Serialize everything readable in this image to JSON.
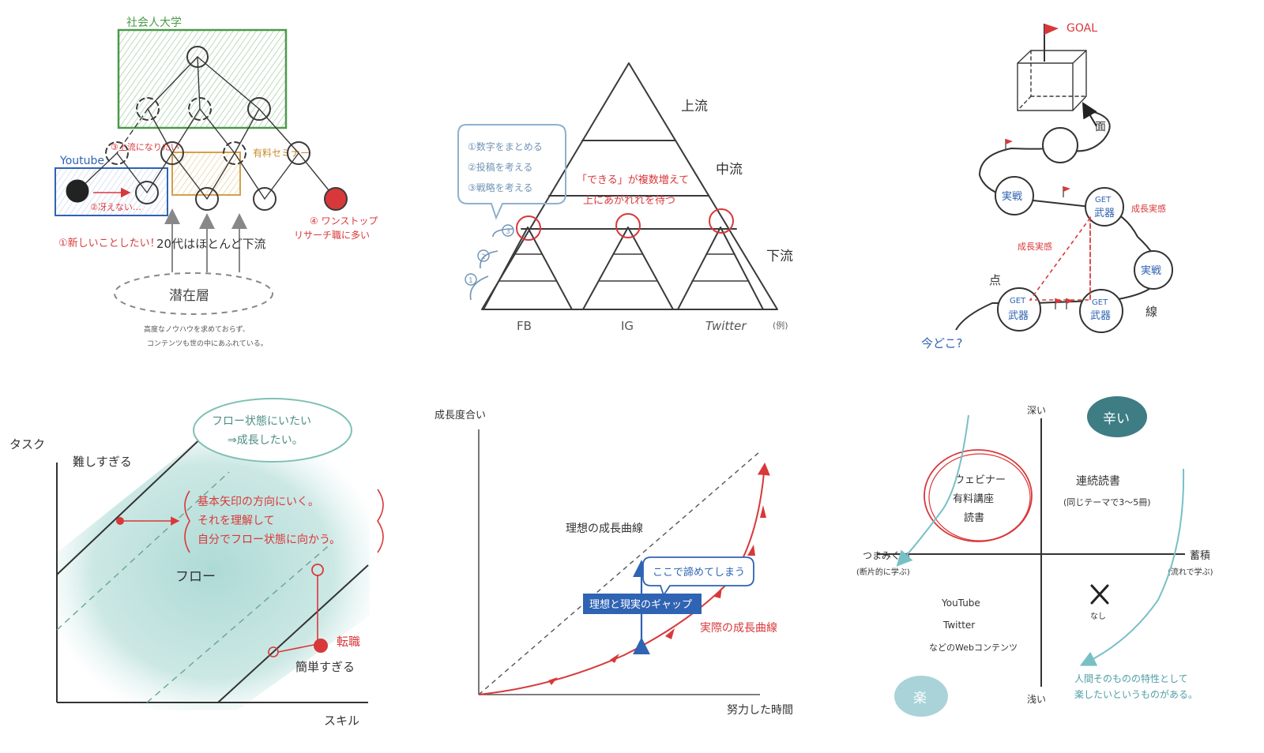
{
  "panel1": {
    "top_box_label": "社会人大学",
    "youtube_label": "Youtube",
    "note_3": "③上流になりたい",
    "note_2": "②冴えない…",
    "note_1": "①新しいことしたい！",
    "paid_seminar": "有料セミナー",
    "note_4": "④ワンストップリサーチ職に多い",
    "note_4_line1": "④ ワンストップ",
    "note_4_line2": "リサーチ職に多い",
    "downstream": "20代はほとんど下流",
    "latent": "潜在層",
    "caption_line1": "高度なノウハウを求めておらず、",
    "caption_line2": "コンテンツも世の中にあふれている。"
  },
  "panel2": {
    "upstream": "上流",
    "midstream": "中流",
    "downstream": "下流",
    "list_1": "①数字をまとめる",
    "list_2": "②投稿を考える",
    "list_3": "③戦略を考える",
    "red_line1": "「できる」が複数増えて",
    "red_line2": "上にあがれれを待つ",
    "step_1": "1",
    "step_2": "2",
    "step_3": "3",
    "fb": "FB",
    "ig": "IG",
    "twitter": "Twitter",
    "example": "(例)"
  },
  "panel3": {
    "goal": "GOAL",
    "surface": "面",
    "point": "点",
    "line": "線",
    "jissen": "実戦",
    "get_label": "GET",
    "weapon": "武器",
    "growth": "成長実感",
    "where_now": "今どこ?"
  },
  "panel4": {
    "y_axis": "タスク",
    "x_axis": "スキル",
    "too_hard": "難しすぎる",
    "too_easy": "簡単すぎる",
    "bubble_line1": "フロー状態にいたい",
    "bubble_line2": "⇒成長したい。",
    "red_line1": "基本矢印の方向にいく。",
    "red_line2": "それを理解して",
    "red_line3": "自分でフロー状態に向かう。",
    "flow": "フロー",
    "job_change": "転職"
  },
  "panel5": {
    "y_axis": "成長度合い",
    "x_axis": "努力した時間",
    "ideal": "理想の成長曲線",
    "actual": "実際の成長曲線",
    "give_up": "ここで諦めてしまう",
    "gap": "理想と現実のギャップ"
  },
  "panel6": {
    "top": "深い",
    "bottom": "浅い",
    "left": "つまみぐい",
    "left_sub": "(断片的に学ぶ)",
    "right": "蓄積",
    "right_sub": "(流れで学ぶ)",
    "tough": "辛い",
    "easy": "楽",
    "circle_line1": "ウェビナー",
    "circle_line2": "有料講座",
    "circle_line3": "読書",
    "tr_line1": "連続読書",
    "tr_line2": "(同じテーマで3〜5冊)",
    "bl_line1": "YouTube",
    "bl_line2": "Twitter",
    "bl_line3": "などのWebコンテンツ",
    "none": "なし",
    "note_line1": "人間そのものの特性として",
    "note_line2": "楽したいというものがある。"
  },
  "colors": {
    "pencil": "#3a3a3a",
    "red": "#d9383a",
    "blue": "#2f63b3",
    "green": "#4a9a4a",
    "orange": "#d4a04a",
    "teal": "#79bfc6",
    "teal_dark": "#3e7d84"
  }
}
